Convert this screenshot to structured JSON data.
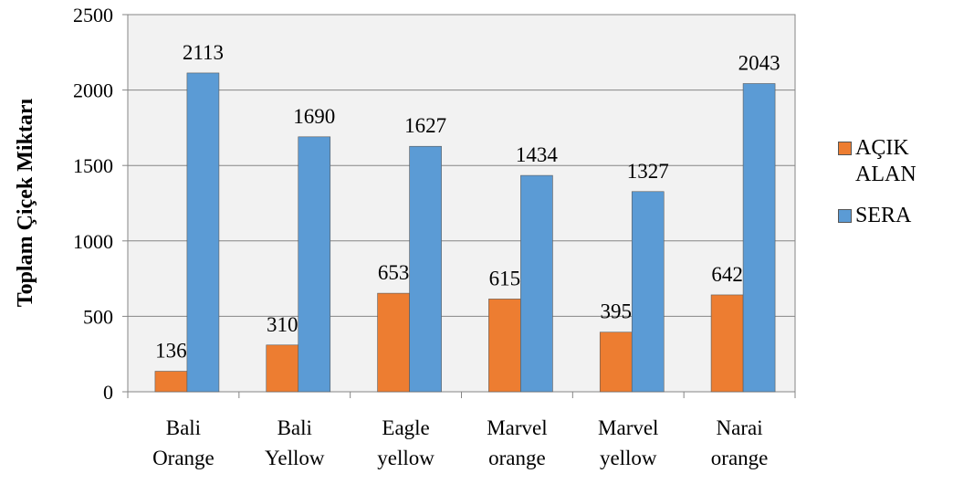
{
  "chart_data": {
    "type": "bar",
    "title": "",
    "xlabel": "",
    "ylabel": "Toplam Çiçek Miktarı",
    "ylim": [
      0,
      2500
    ],
    "yticks": [
      0,
      500,
      1000,
      1500,
      2000,
      2500
    ],
    "categories": [
      [
        "Bali",
        "Orange"
      ],
      [
        "Bali",
        "Yellow"
      ],
      [
        "Eagle",
        "yellow"
      ],
      [
        "Marvel",
        "orange"
      ],
      [
        "Marvel",
        "yellow"
      ],
      [
        "Narai",
        "orange"
      ]
    ],
    "series": [
      {
        "name": "AÇIK ALAN",
        "color": "#ED7D31",
        "values": [
          136,
          310,
          653,
          615,
          395,
          642
        ]
      },
      {
        "name": "SERA",
        "color": "#5B9BD5",
        "values": [
          2113,
          1690,
          1627,
          1434,
          1327,
          2043
        ]
      }
    ],
    "grid": true,
    "plot_background": "#F2F2F2",
    "legend_position": "right"
  }
}
